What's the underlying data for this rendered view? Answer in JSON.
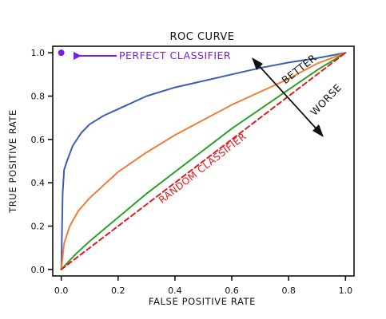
{
  "chart_data": {
    "type": "line",
    "title": "ROC CURVE",
    "xlabel": "FALSE POSITIVE RATE",
    "ylabel": "TRUE POSITIVE RATE",
    "xlim": [
      -0.03,
      1.03
    ],
    "ylim": [
      -0.03,
      1.03
    ],
    "xticks": [
      "0.0",
      "0.2",
      "0.4",
      "0.6",
      "0.8",
      "1.0"
    ],
    "yticks": [
      "0.0",
      "0.2",
      "0.4",
      "0.6",
      "0.8",
      "1.0"
    ],
    "grid": false,
    "series": [
      {
        "color": "#3a5fb0",
        "x": [
          0.0,
          0.005,
          0.01,
          0.02,
          0.04,
          0.07,
          0.1,
          0.15,
          0.2,
          0.3,
          0.4,
          0.5,
          0.6,
          0.7,
          0.8,
          0.9,
          1.0
        ],
        "y": [
          0.0,
          0.35,
          0.46,
          0.5,
          0.57,
          0.63,
          0.67,
          0.71,
          0.74,
          0.8,
          0.84,
          0.87,
          0.9,
          0.93,
          0.955,
          0.975,
          1.0
        ]
      },
      {
        "color": "#f07f35",
        "x": [
          0.0,
          0.01,
          0.03,
          0.06,
          0.1,
          0.15,
          0.2,
          0.3,
          0.4,
          0.5,
          0.6,
          0.7,
          0.8,
          0.9,
          1.0
        ],
        "y": [
          0.0,
          0.12,
          0.2,
          0.27,
          0.33,
          0.39,
          0.45,
          0.54,
          0.62,
          0.69,
          0.76,
          0.82,
          0.88,
          0.95,
          1.0
        ]
      },
      {
        "color": "#2ca02c",
        "x": [
          0.0,
          0.05,
          0.1,
          0.2,
          0.3,
          0.4,
          0.5,
          0.6,
          0.7,
          0.8,
          0.9,
          1.0
        ],
        "y": [
          0.0,
          0.07,
          0.13,
          0.24,
          0.35,
          0.45,
          0.55,
          0.65,
          0.74,
          0.83,
          0.92,
          1.0
        ]
      },
      {
        "color": "#e31a1c",
        "dashed": true,
        "x": [
          0.0,
          1.0
        ],
        "y": [
          0.0,
          1.0
        ]
      }
    ],
    "points": [
      {
        "x": 0.0,
        "y": 1.0,
        "color": "#7a1fe0"
      }
    ],
    "annotations": {
      "perfect": {
        "text": "PERFECT CLASSIFIER",
        "color": "#7a1fe0"
      },
      "random": {
        "text": "RANDOM CLASSIFIER",
        "color": "#e31a1c"
      },
      "better": "BETTER",
      "worse": "WORSE"
    }
  }
}
